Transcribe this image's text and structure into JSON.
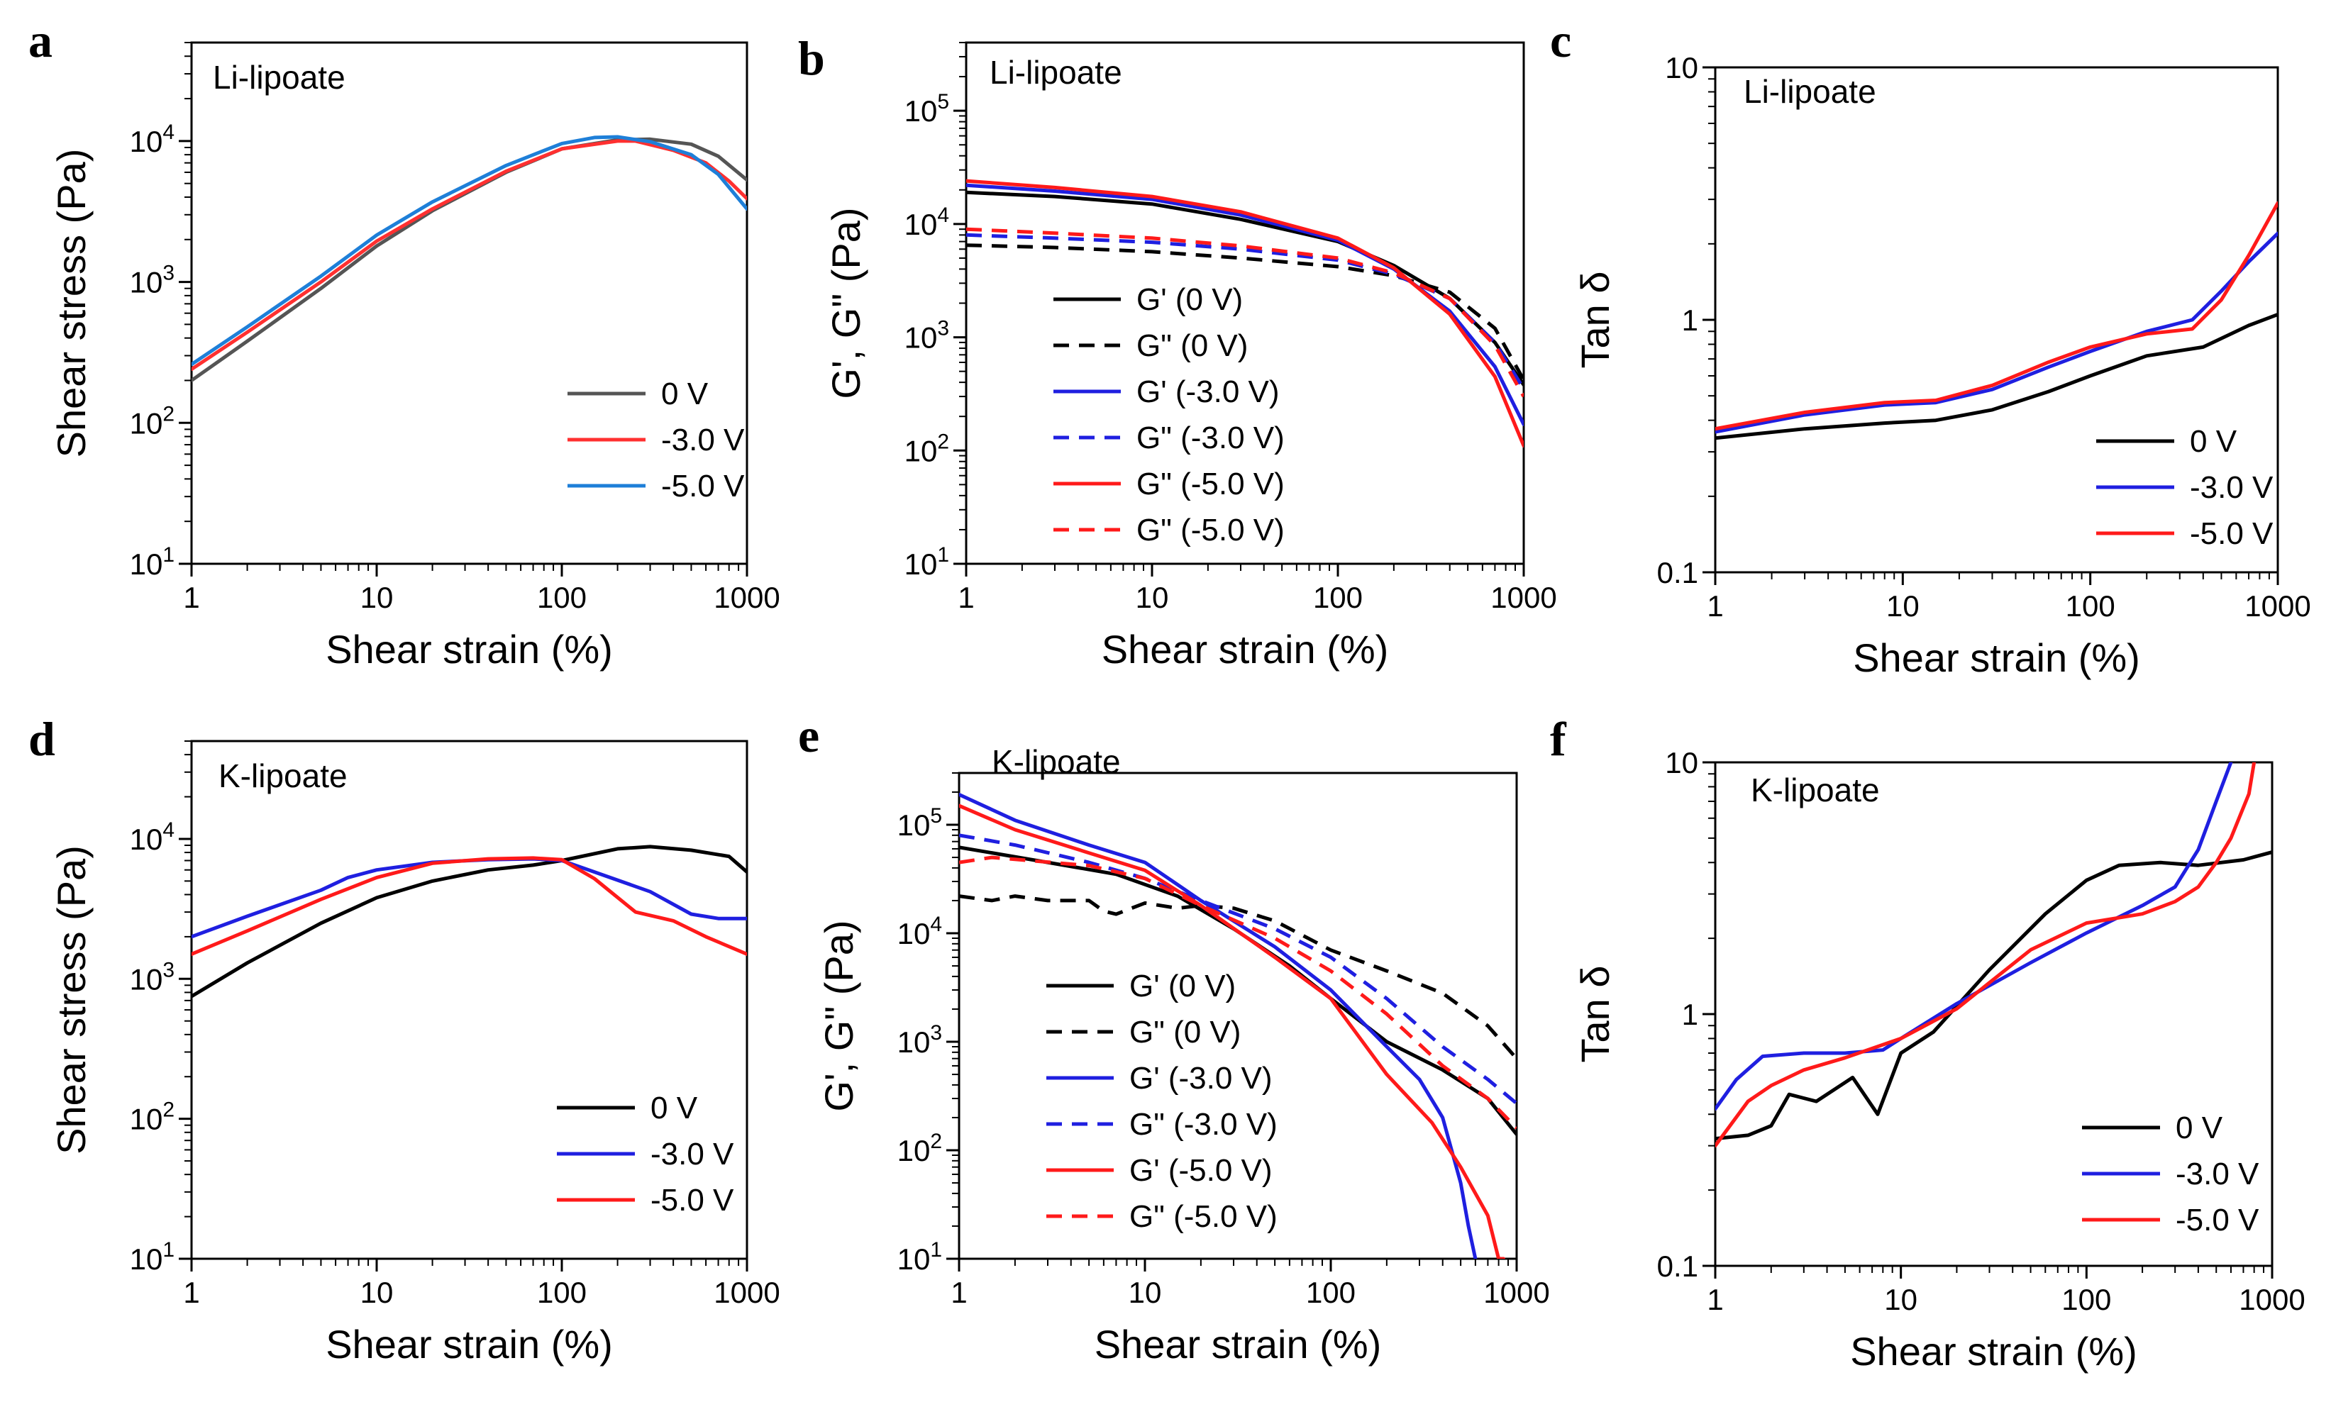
{
  "figure": {
    "panels": [
      "a",
      "b",
      "c",
      "d",
      "e",
      "f"
    ]
  },
  "chart_data": [
    {
      "id": "a",
      "letter": "a",
      "type": "line",
      "sample_label": "Li-lipoate",
      "xlabel": "Shear strain (%)",
      "ylabel": "Shear stress (Pa)",
      "xscale": "log",
      "yscale": "log",
      "xlim": [
        1,
        1000
      ],
      "ylim": [
        10,
        50000
      ],
      "xticks": [
        1,
        10,
        100,
        1000
      ],
      "xtick_labels": [
        "1",
        "10",
        "100",
        "1000"
      ],
      "yticks": [
        10,
        100,
        1000,
        10000
      ],
      "ytick_labels": [
        "10^1",
        "10^2",
        "10^3",
        "10^4"
      ],
      "legend_position": "lower-right",
      "series": [
        {
          "name": "0 V",
          "color": "#555555",
          "dash": "solid",
          "x": [
            1,
            2,
            5,
            10,
            20,
            50,
            100,
            200,
            300,
            500,
            700,
            1000
          ],
          "y": [
            200,
            380,
            900,
            1800,
            3200,
            6000,
            8800,
            10200,
            10300,
            9500,
            7800,
            5300
          ]
        },
        {
          "name": "-3.0 V",
          "color": "#ff3030",
          "dash": "solid",
          "x": [
            1,
            2,
            5,
            10,
            20,
            50,
            100,
            200,
            250,
            400,
            600,
            800,
            1000
          ],
          "y": [
            240,
            440,
            1000,
            1950,
            3300,
            6100,
            8800,
            10000,
            10000,
            8600,
            7000,
            5200,
            3900
          ]
        },
        {
          "name": "-5.0 V",
          "color": "#1e7fd8",
          "dash": "solid",
          "x": [
            1,
            2,
            5,
            10,
            20,
            50,
            100,
            150,
            200,
            300,
            500,
            700,
            1000
          ],
          "y": [
            260,
            480,
            1100,
            2150,
            3700,
            6700,
            9600,
            10600,
            10700,
            9900,
            8000,
            5800,
            3300
          ]
        }
      ]
    },
    {
      "id": "b",
      "letter": "b",
      "type": "line",
      "sample_label": "Li-lipoate",
      "xlabel": "Shear strain (%)",
      "ylabel": "G', G\" (Pa)",
      "xscale": "log",
      "yscale": "log",
      "xlim": [
        1,
        1000
      ],
      "ylim": [
        10,
        400000
      ],
      "xticks": [
        1,
        10,
        100,
        1000
      ],
      "xtick_labels": [
        "1",
        "10",
        "100",
        "1000"
      ],
      "yticks": [
        10,
        100,
        1000,
        10000,
        100000
      ],
      "ytick_labels": [
        "10^1",
        "10^2",
        "10^3",
        "10^4",
        "10^5"
      ],
      "legend_position": "lower-left",
      "series": [
        {
          "name": "G' (0 V)",
          "color": "#000000",
          "dash": "solid",
          "x": [
            1,
            3,
            10,
            30,
            100,
            200,
            400,
            700,
            1000
          ],
          "y": [
            19000,
            17500,
            15000,
            11000,
            7000,
            4300,
            2200,
            900,
            380
          ]
        },
        {
          "name": "G\" (0 V)",
          "color": "#000000",
          "dash": "dashed",
          "x": [
            1,
            3,
            10,
            30,
            100,
            200,
            400,
            700,
            1000
          ],
          "y": [
            6500,
            6200,
            5700,
            5000,
            4200,
            3500,
            2500,
            1200,
            420
          ]
        },
        {
          "name": "G' (-3.0 V)",
          "color": "#1f1fe0",
          "dash": "solid",
          "x": [
            1,
            3,
            10,
            30,
            100,
            200,
            400,
            700,
            1000
          ],
          "y": [
            22000,
            19500,
            16500,
            12000,
            7200,
            4000,
            1700,
            550,
            170
          ]
        },
        {
          "name": "G\" (-3.0 V)",
          "color": "#1f1fe0",
          "dash": "dashed",
          "x": [
            1,
            3,
            10,
            30,
            100,
            200,
            400,
            700,
            1000
          ],
          "y": [
            8000,
            7500,
            6900,
            6000,
            4800,
            3600,
            2200,
            900,
            350
          ]
        },
        {
          "name": "G\" (-5.0 V)",
          "color": "#ff1a1a",
          "dash": "solid",
          "x": [
            1,
            3,
            10,
            30,
            100,
            200,
            400,
            700,
            1000
          ],
          "y": [
            24000,
            21000,
            17500,
            12800,
            7500,
            4100,
            1600,
            450,
            110
          ]
        },
        {
          "name": "G\" (-5.0 V)",
          "color": "#ff1a1a",
          "dash": "dashed",
          "x": [
            1,
            3,
            10,
            30,
            100,
            200,
            400,
            700,
            1000
          ],
          "y": [
            9000,
            8300,
            7500,
            6400,
            5000,
            3700,
            2200,
            850,
            300
          ]
        }
      ]
    },
    {
      "id": "c",
      "letter": "c",
      "type": "line",
      "sample_label": "Li-lipoate",
      "xlabel": "Shear strain (%)",
      "ylabel": "Tan δ",
      "xscale": "log",
      "yscale": "log",
      "xlim": [
        1,
        1000
      ],
      "ylim": [
        0.1,
        10
      ],
      "xticks": [
        1,
        10,
        100,
        1000
      ],
      "xtick_labels": [
        "1",
        "10",
        "100",
        "1000"
      ],
      "yticks": [
        0.1,
        1,
        10
      ],
      "ytick_labels": [
        "0.1",
        "1",
        "10"
      ],
      "legend_position": "lower-right",
      "series": [
        {
          "name": "0 V",
          "color": "#000000",
          "dash": "solid",
          "x": [
            1,
            3,
            8,
            15,
            30,
            60,
            100,
            200,
            400,
            700,
            1000
          ],
          "y": [
            0.34,
            0.37,
            0.39,
            0.4,
            0.44,
            0.52,
            0.6,
            0.72,
            0.78,
            0.95,
            1.05
          ]
        },
        {
          "name": "-3.0 V",
          "color": "#1f1fe0",
          "dash": "solid",
          "x": [
            1,
            3,
            8,
            15,
            30,
            60,
            100,
            200,
            350,
            500,
            700,
            1000
          ],
          "y": [
            0.36,
            0.42,
            0.46,
            0.47,
            0.53,
            0.65,
            0.75,
            0.9,
            1.0,
            1.3,
            1.7,
            2.2
          ]
        },
        {
          "name": "-5.0 V",
          "color": "#ff1a1a",
          "dash": "solid",
          "x": [
            1,
            3,
            8,
            15,
            30,
            60,
            100,
            200,
            350,
            500,
            700,
            1000
          ],
          "y": [
            0.37,
            0.43,
            0.47,
            0.48,
            0.55,
            0.68,
            0.78,
            0.88,
            0.92,
            1.2,
            1.8,
            2.9
          ]
        }
      ]
    },
    {
      "id": "d",
      "letter": "d",
      "type": "line",
      "sample_label": "K-lipoate",
      "xlabel": "Shear strain (%)",
      "ylabel": "Shear stress (Pa)",
      "xscale": "log",
      "yscale": "log",
      "xlim": [
        1,
        1000
      ],
      "ylim": [
        10,
        50000
      ],
      "xticks": [
        1,
        10,
        100,
        1000
      ],
      "xtick_labels": [
        "1",
        "10",
        "100",
        "1000"
      ],
      "yticks": [
        10,
        100,
        1000,
        10000
      ],
      "ytick_labels": [
        "10^1",
        "10^2",
        "10^3",
        "10^4"
      ],
      "legend_position": "lower-right",
      "series": [
        {
          "name": "0 V",
          "color": "#000000",
          "dash": "solid",
          "x": [
            1,
            2,
            5,
            10,
            20,
            40,
            70,
            100,
            200,
            300,
            500,
            800,
            1000
          ],
          "y": [
            750,
            1300,
            2500,
            3800,
            5000,
            6000,
            6500,
            7000,
            8500,
            8800,
            8300,
            7500,
            5800
          ]
        },
        {
          "name": "-3.0 V",
          "color": "#1f1fe0",
          "dash": "solid",
          "x": [
            1,
            2,
            5,
            7,
            10,
            20,
            40,
            70,
            100,
            150,
            300,
            500,
            700,
            1000
          ],
          "y": [
            2000,
            2800,
            4300,
            5300,
            6000,
            6800,
            7100,
            7200,
            7000,
            5800,
            4200,
            2900,
            2700,
            2700
          ]
        },
        {
          "name": "-5.0 V",
          "color": "#ff1a1a",
          "dash": "solid",
          "x": [
            1,
            2,
            5,
            10,
            20,
            40,
            70,
            100,
            150,
            250,
            400,
            600,
            1000
          ],
          "y": [
            1500,
            2200,
            3700,
            5300,
            6700,
            7200,
            7300,
            7100,
            5200,
            3000,
            2600,
            2000,
            1500
          ]
        }
      ]
    },
    {
      "id": "e",
      "letter": "e",
      "type": "line",
      "sample_label": "K-lipoate",
      "xlabel": "Shear strain (%)",
      "ylabel": "G', G\" (Pa)",
      "xscale": "log",
      "yscale": "log",
      "xlim": [
        1,
        1000
      ],
      "ylim": [
        10,
        300000
      ],
      "xticks": [
        1,
        10,
        100,
        1000
      ],
      "xtick_labels": [
        "1",
        "10",
        "100",
        "1000"
      ],
      "yticks": [
        10,
        100,
        1000,
        10000,
        100000
      ],
      "ytick_labels": [
        "10^1",
        "10^2",
        "10^3",
        "10^4",
        "10^5"
      ],
      "legend_position": "lower-left",
      "series": [
        {
          "name": "G' (0 V)",
          "color": "#000000",
          "dash": "solid",
          "x": [
            1,
            3,
            7,
            15,
            30,
            60,
            100,
            200,
            400,
            700,
            1000
          ],
          "y": [
            62000,
            45000,
            35000,
            22000,
            11000,
            5000,
            2500,
            1000,
            550,
            300,
            140
          ]
        },
        {
          "name": "G\" (0 V)",
          "color": "#000000",
          "dash": "dashed",
          "x": [
            1,
            1.5,
            2,
            3,
            5,
            6,
            7,
            10,
            15,
            20,
            30,
            50,
            100,
            200,
            400,
            700,
            1000
          ],
          "y": [
            22000,
            20000,
            22000,
            20000,
            20000,
            16000,
            15000,
            19000,
            17000,
            18000,
            17000,
            13000,
            7000,
            4500,
            2800,
            1400,
            700
          ]
        },
        {
          "name": "G' (-3.0 V)",
          "color": "#1f1fe0",
          "dash": "solid",
          "x": [
            1,
            2,
            5,
            10,
            20,
            50,
            100,
            200,
            300,
            400,
            500,
            550,
            600
          ],
          "y": [
            190000,
            110000,
            65000,
            45000,
            20000,
            7500,
            3000,
            900,
            450,
            200,
            50,
            20,
            10
          ]
        },
        {
          "name": "G\" (-3.0 V)",
          "color": "#1f1fe0",
          "dash": "dashed",
          "x": [
            1,
            2,
            5,
            10,
            20,
            50,
            100,
            200,
            400,
            700,
            1000
          ],
          "y": [
            80000,
            65000,
            45000,
            32000,
            20000,
            11000,
            6000,
            2500,
            900,
            450,
            270
          ]
        },
        {
          "name": "G' (-5.0 V)",
          "color": "#ff1a1a",
          "dash": "solid",
          "x": [
            1,
            2,
            5,
            10,
            20,
            50,
            100,
            200,
            350,
            500,
            700,
            800,
            850
          ],
          "y": [
            150000,
            90000,
            55000,
            38000,
            18000,
            6000,
            2500,
            500,
            180,
            70,
            25,
            10,
            10
          ]
        },
        {
          "name": "G\" (-5.0 V)",
          "color": "#ff1a1a",
          "dash": "dashed",
          "x": [
            1,
            1.5,
            2,
            5,
            10,
            20,
            50,
            100,
            200,
            400,
            700,
            1000
          ],
          "y": [
            45000,
            50000,
            48000,
            42000,
            32000,
            18000,
            9000,
            4500,
            1800,
            600,
            300,
            160
          ]
        }
      ]
    },
    {
      "id": "f",
      "letter": "f",
      "type": "line",
      "sample_label": "K-lipoate",
      "xlabel": "Shear strain (%)",
      "ylabel": "Tan δ",
      "xscale": "log",
      "yscale": "log",
      "xlim": [
        1,
        1000
      ],
      "ylim": [
        0.1,
        10
      ],
      "xticks": [
        1,
        10,
        100,
        1000
      ],
      "xtick_labels": [
        "1",
        "10",
        "100",
        "1000"
      ],
      "yticks": [
        0.1,
        1,
        10
      ],
      "ytick_labels": [
        "0.1",
        "1",
        "10"
      ],
      "legend_position": "lower-right",
      "series": [
        {
          "name": "0 V",
          "color": "#000000",
          "dash": "solid",
          "x": [
            1,
            1.5,
            2,
            2.5,
            3.5,
            5.5,
            7.5,
            10,
            15,
            30,
            60,
            100,
            150,
            250,
            400,
            700,
            1000
          ],
          "y": [
            0.32,
            0.33,
            0.36,
            0.48,
            0.45,
            0.56,
            0.4,
            0.7,
            0.85,
            1.5,
            2.5,
            3.4,
            3.9,
            4.0,
            3.9,
            4.1,
            4.4
          ]
        },
        {
          "name": "-3.0 V",
          "color": "#1f1fe0",
          "dash": "solid",
          "x": [
            1,
            1.3,
            1.8,
            3,
            5,
            8,
            10,
            20,
            50,
            100,
            200,
            300,
            400,
            500,
            600
          ],
          "y": [
            0.42,
            0.55,
            0.68,
            0.7,
            0.7,
            0.72,
            0.8,
            1.1,
            1.6,
            2.1,
            2.7,
            3.2,
            4.5,
            7.0,
            10.0
          ]
        },
        {
          "name": "-5.0 V",
          "color": "#ff1a1a",
          "dash": "solid",
          "x": [
            1,
            1.5,
            2,
            3,
            5,
            10,
            20,
            50,
            100,
            200,
            300,
            400,
            500,
            600,
            750,
            800
          ],
          "y": [
            0.3,
            0.45,
            0.52,
            0.6,
            0.67,
            0.8,
            1.05,
            1.8,
            2.3,
            2.5,
            2.8,
            3.2,
            4.0,
            5.0,
            7.5,
            10.0
          ]
        }
      ]
    }
  ]
}
